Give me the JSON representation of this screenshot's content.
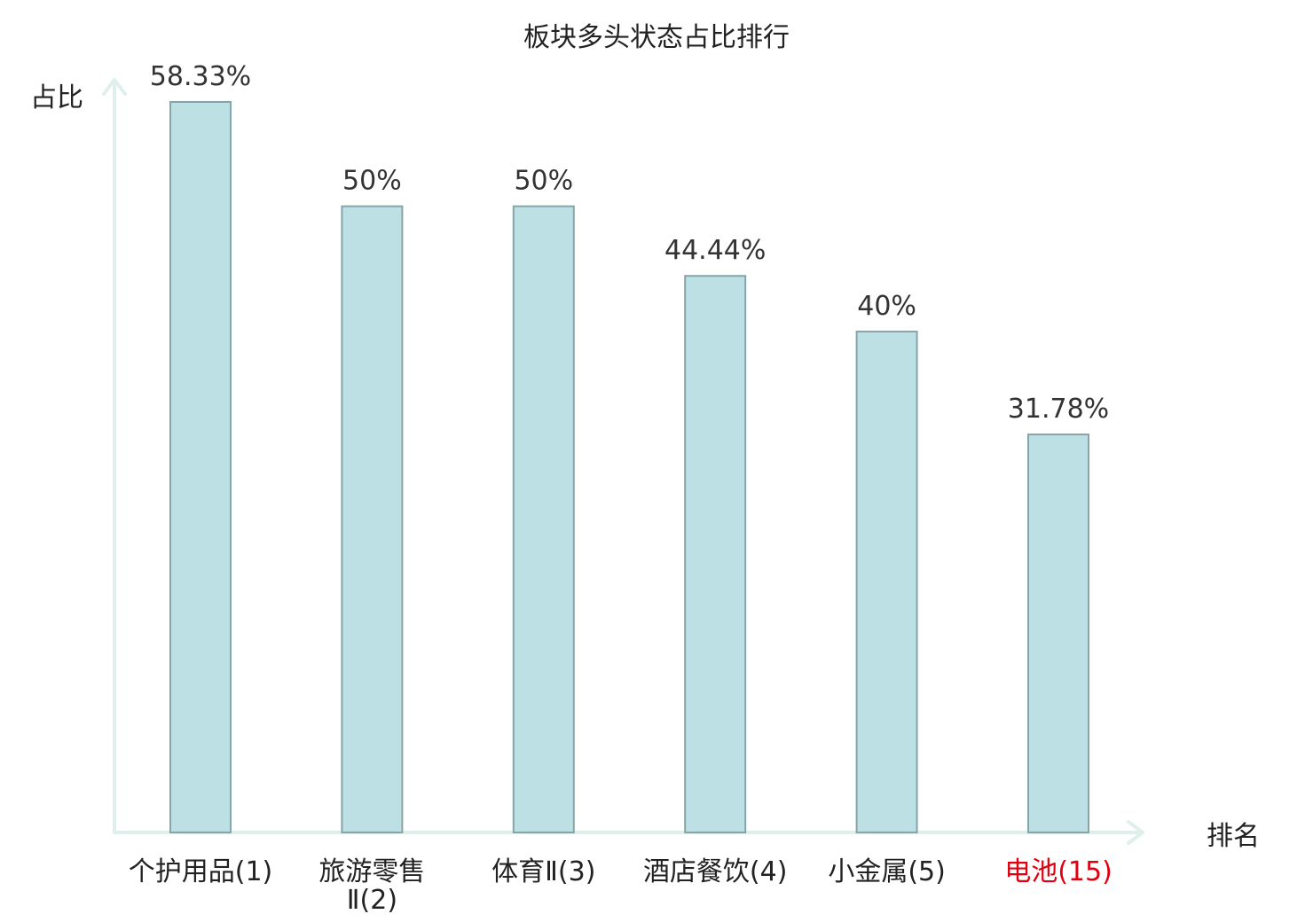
{
  "chart_data": {
    "type": "bar",
    "title": "板块多头状态占比排行",
    "xlabel": "排名",
    "ylabel": "占比",
    "categories": [
      {
        "lines": [
          "个护用品(1)"
        ],
        "highlight": false
      },
      {
        "lines": [
          "旅游零售",
          "Ⅱ(2)"
        ],
        "highlight": false
      },
      {
        "lines": [
          "体育Ⅱ(3)"
        ],
        "highlight": false
      },
      {
        "lines": [
          "酒店餐饮(4)"
        ],
        "highlight": false
      },
      {
        "lines": [
          "小金属(5)"
        ],
        "highlight": false
      },
      {
        "lines": [
          "电池(15)"
        ],
        "highlight": true
      }
    ],
    "values": [
      58.33,
      50,
      50,
      44.44,
      40,
      31.78
    ],
    "value_labels": [
      "58.33%",
      "50%",
      "50%",
      "44.44%",
      "40%",
      "31.78%"
    ],
    "ylim": [
      0,
      58.33
    ],
    "grid": false,
    "legend": "none",
    "colors": {
      "bar_fill": "#bce0e3",
      "bar_stroke": "#86a5a9",
      "axis": "#dff0ec",
      "highlight_label": "#e0000f",
      "text": "#222222"
    }
  }
}
